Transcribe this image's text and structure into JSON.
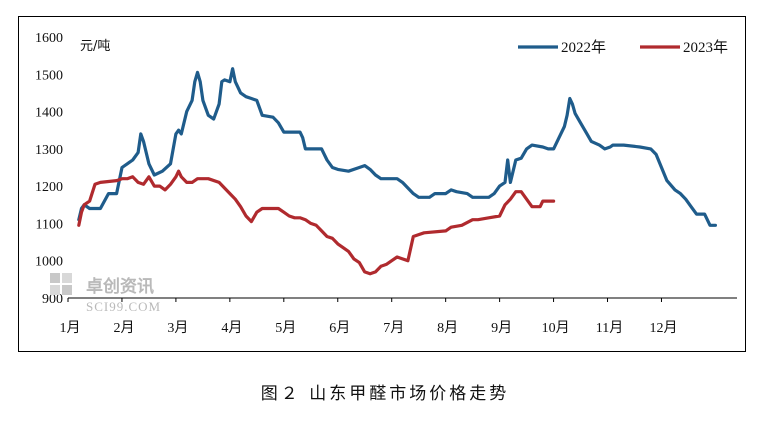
{
  "caption": "图２ 山东甲醛市场价格走势",
  "watermark": {
    "cn": "卓创资讯",
    "en": "SCI99.COM"
  },
  "colors": {
    "s2022": "#1F5C8B",
    "s2023": "#B02A2E",
    "axis": "#000000"
  },
  "chart_data": {
    "type": "line",
    "ylabel": "元/吨",
    "ylim": [
      900,
      1600
    ],
    "yticks": [
      900,
      1000,
      1100,
      1200,
      1300,
      1400,
      1500,
      1600
    ],
    "xlim": [
      0,
      12.4
    ],
    "xticks": [
      {
        "label": "1月",
        "x": 0
      },
      {
        "label": "2月",
        "x": 1
      },
      {
        "label": "3月",
        "x": 2
      },
      {
        "label": "4月",
        "x": 3
      },
      {
        "label": "5月",
        "x": 4
      },
      {
        "label": "6月",
        "x": 5
      },
      {
        "label": "7月",
        "x": 6
      },
      {
        "label": "8月",
        "x": 7
      },
      {
        "label": "9月",
        "x": 8
      },
      {
        "label": "10月",
        "x": 9
      },
      {
        "label": "11月",
        "x": 10
      },
      {
        "label": "12月",
        "x": 11
      }
    ],
    "legend": "top-right",
    "series": [
      {
        "name": "2022年",
        "color": "#1F5C8B",
        "points": [
          [
            0.2,
            1110
          ],
          [
            0.25,
            1140
          ],
          [
            0.3,
            1150
          ],
          [
            0.4,
            1140
          ],
          [
            0.6,
            1140
          ],
          [
            0.75,
            1180
          ],
          [
            0.9,
            1180
          ],
          [
            1.0,
            1250
          ],
          [
            1.1,
            1260
          ],
          [
            1.2,
            1270
          ],
          [
            1.3,
            1290
          ],
          [
            1.35,
            1340
          ],
          [
            1.4,
            1320
          ],
          [
            1.5,
            1260
          ],
          [
            1.6,
            1230
          ],
          [
            1.75,
            1240
          ],
          [
            1.9,
            1260
          ],
          [
            2.0,
            1340
          ],
          [
            2.05,
            1350
          ],
          [
            2.1,
            1340
          ],
          [
            2.2,
            1400
          ],
          [
            2.3,
            1430
          ],
          [
            2.35,
            1480
          ],
          [
            2.4,
            1505
          ],
          [
            2.45,
            1480
          ],
          [
            2.5,
            1430
          ],
          [
            2.6,
            1390
          ],
          [
            2.7,
            1380
          ],
          [
            2.8,
            1420
          ],
          [
            2.85,
            1480
          ],
          [
            2.9,
            1485
          ],
          [
            3.0,
            1480
          ],
          [
            3.05,
            1515
          ],
          [
            3.1,
            1480
          ],
          [
            3.2,
            1450
          ],
          [
            3.3,
            1440
          ],
          [
            3.4,
            1435
          ],
          [
            3.5,
            1430
          ],
          [
            3.55,
            1410
          ],
          [
            3.6,
            1390
          ],
          [
            3.8,
            1385
          ],
          [
            3.9,
            1370
          ],
          [
            4.0,
            1345
          ],
          [
            4.3,
            1345
          ],
          [
            4.35,
            1330
          ],
          [
            4.4,
            1300
          ],
          [
            4.7,
            1300
          ],
          [
            4.8,
            1270
          ],
          [
            4.9,
            1250
          ],
          [
            5.0,
            1245
          ],
          [
            5.2,
            1240
          ],
          [
            5.4,
            1250
          ],
          [
            5.5,
            1255
          ],
          [
            5.6,
            1245
          ],
          [
            5.7,
            1230
          ],
          [
            5.8,
            1220
          ],
          [
            6.1,
            1220
          ],
          [
            6.2,
            1210
          ],
          [
            6.4,
            1180
          ],
          [
            6.5,
            1170
          ],
          [
            6.7,
            1170
          ],
          [
            6.8,
            1180
          ],
          [
            7.0,
            1180
          ],
          [
            7.1,
            1190
          ],
          [
            7.2,
            1185
          ],
          [
            7.4,
            1180
          ],
          [
            7.5,
            1170
          ],
          [
            7.8,
            1170
          ],
          [
            7.9,
            1180
          ],
          [
            8.0,
            1200
          ],
          [
            8.1,
            1210
          ],
          [
            8.15,
            1270
          ],
          [
            8.2,
            1210
          ],
          [
            8.3,
            1270
          ],
          [
            8.4,
            1275
          ],
          [
            8.5,
            1300
          ],
          [
            8.6,
            1310
          ],
          [
            8.8,
            1305
          ],
          [
            8.9,
            1300
          ],
          [
            9.0,
            1300
          ],
          [
            9.1,
            1330
          ],
          [
            9.2,
            1360
          ],
          [
            9.25,
            1390
          ],
          [
            9.3,
            1435
          ],
          [
            9.35,
            1420
          ],
          [
            9.4,
            1395
          ],
          [
            9.5,
            1370
          ],
          [
            9.6,
            1345
          ],
          [
            9.7,
            1320
          ],
          [
            9.85,
            1310
          ],
          [
            9.95,
            1300
          ],
          [
            10.05,
            1305
          ],
          [
            10.1,
            1310
          ],
          [
            10.3,
            1310
          ],
          [
            10.6,
            1305
          ],
          [
            10.8,
            1300
          ],
          [
            10.9,
            1285
          ],
          [
            11.0,
            1250
          ],
          [
            11.1,
            1215
          ],
          [
            11.25,
            1190
          ],
          [
            11.35,
            1180
          ],
          [
            11.45,
            1165
          ],
          [
            11.55,
            1145
          ],
          [
            11.65,
            1125
          ],
          [
            11.8,
            1125
          ],
          [
            11.9,
            1095
          ],
          [
            12.0,
            1095
          ]
        ]
      },
      {
        "name": "2023年",
        "color": "#B02A2E",
        "points": [
          [
            0.2,
            1095
          ],
          [
            0.25,
            1130
          ],
          [
            0.3,
            1150
          ],
          [
            0.4,
            1160
          ],
          [
            0.5,
            1205
          ],
          [
            0.6,
            1210
          ],
          [
            0.9,
            1215
          ],
          [
            1.0,
            1220
          ],
          [
            1.1,
            1220
          ],
          [
            1.2,
            1225
          ],
          [
            1.3,
            1210
          ],
          [
            1.4,
            1205
          ],
          [
            1.5,
            1225
          ],
          [
            1.6,
            1200
          ],
          [
            1.7,
            1200
          ],
          [
            1.8,
            1190
          ],
          [
            1.9,
            1205
          ],
          [
            2.0,
            1225
          ],
          [
            2.05,
            1240
          ],
          [
            2.1,
            1225
          ],
          [
            2.2,
            1210
          ],
          [
            2.3,
            1210
          ],
          [
            2.4,
            1220
          ],
          [
            2.6,
            1220
          ],
          [
            2.8,
            1210
          ],
          [
            2.9,
            1195
          ],
          [
            3.0,
            1180
          ],
          [
            3.1,
            1165
          ],
          [
            3.2,
            1145
          ],
          [
            3.3,
            1120
          ],
          [
            3.4,
            1105
          ],
          [
            3.5,
            1130
          ],
          [
            3.6,
            1140
          ],
          [
            3.9,
            1140
          ],
          [
            4.0,
            1130
          ],
          [
            4.1,
            1120
          ],
          [
            4.2,
            1115
          ],
          [
            4.3,
            1115
          ],
          [
            4.4,
            1110
          ],
          [
            4.5,
            1100
          ],
          [
            4.6,
            1095
          ],
          [
            4.7,
            1080
          ],
          [
            4.8,
            1065
          ],
          [
            4.9,
            1060
          ],
          [
            5.0,
            1045
          ],
          [
            5.1,
            1035
          ],
          [
            5.2,
            1025
          ],
          [
            5.3,
            1005
          ],
          [
            5.4,
            995
          ],
          [
            5.5,
            970
          ],
          [
            5.6,
            965
          ],
          [
            5.7,
            970
          ],
          [
            5.8,
            985
          ],
          [
            5.9,
            990
          ],
          [
            6.0,
            1000
          ],
          [
            6.1,
            1010
          ],
          [
            6.2,
            1005
          ],
          [
            6.3,
            1000
          ],
          [
            6.4,
            1065
          ],
          [
            6.5,
            1070
          ],
          [
            6.6,
            1075
          ],
          [
            7.0,
            1080
          ],
          [
            7.1,
            1090
          ],
          [
            7.3,
            1095
          ],
          [
            7.5,
            1110
          ],
          [
            7.6,
            1110
          ],
          [
            7.8,
            1115
          ],
          [
            8.0,
            1120
          ],
          [
            8.1,
            1150
          ],
          [
            8.2,
            1165
          ],
          [
            8.3,
            1185
          ],
          [
            8.4,
            1185
          ],
          [
            8.5,
            1165
          ],
          [
            8.6,
            1145
          ],
          [
            8.75,
            1145
          ],
          [
            8.8,
            1160
          ],
          [
            9.0,
            1160
          ]
        ]
      }
    ]
  }
}
